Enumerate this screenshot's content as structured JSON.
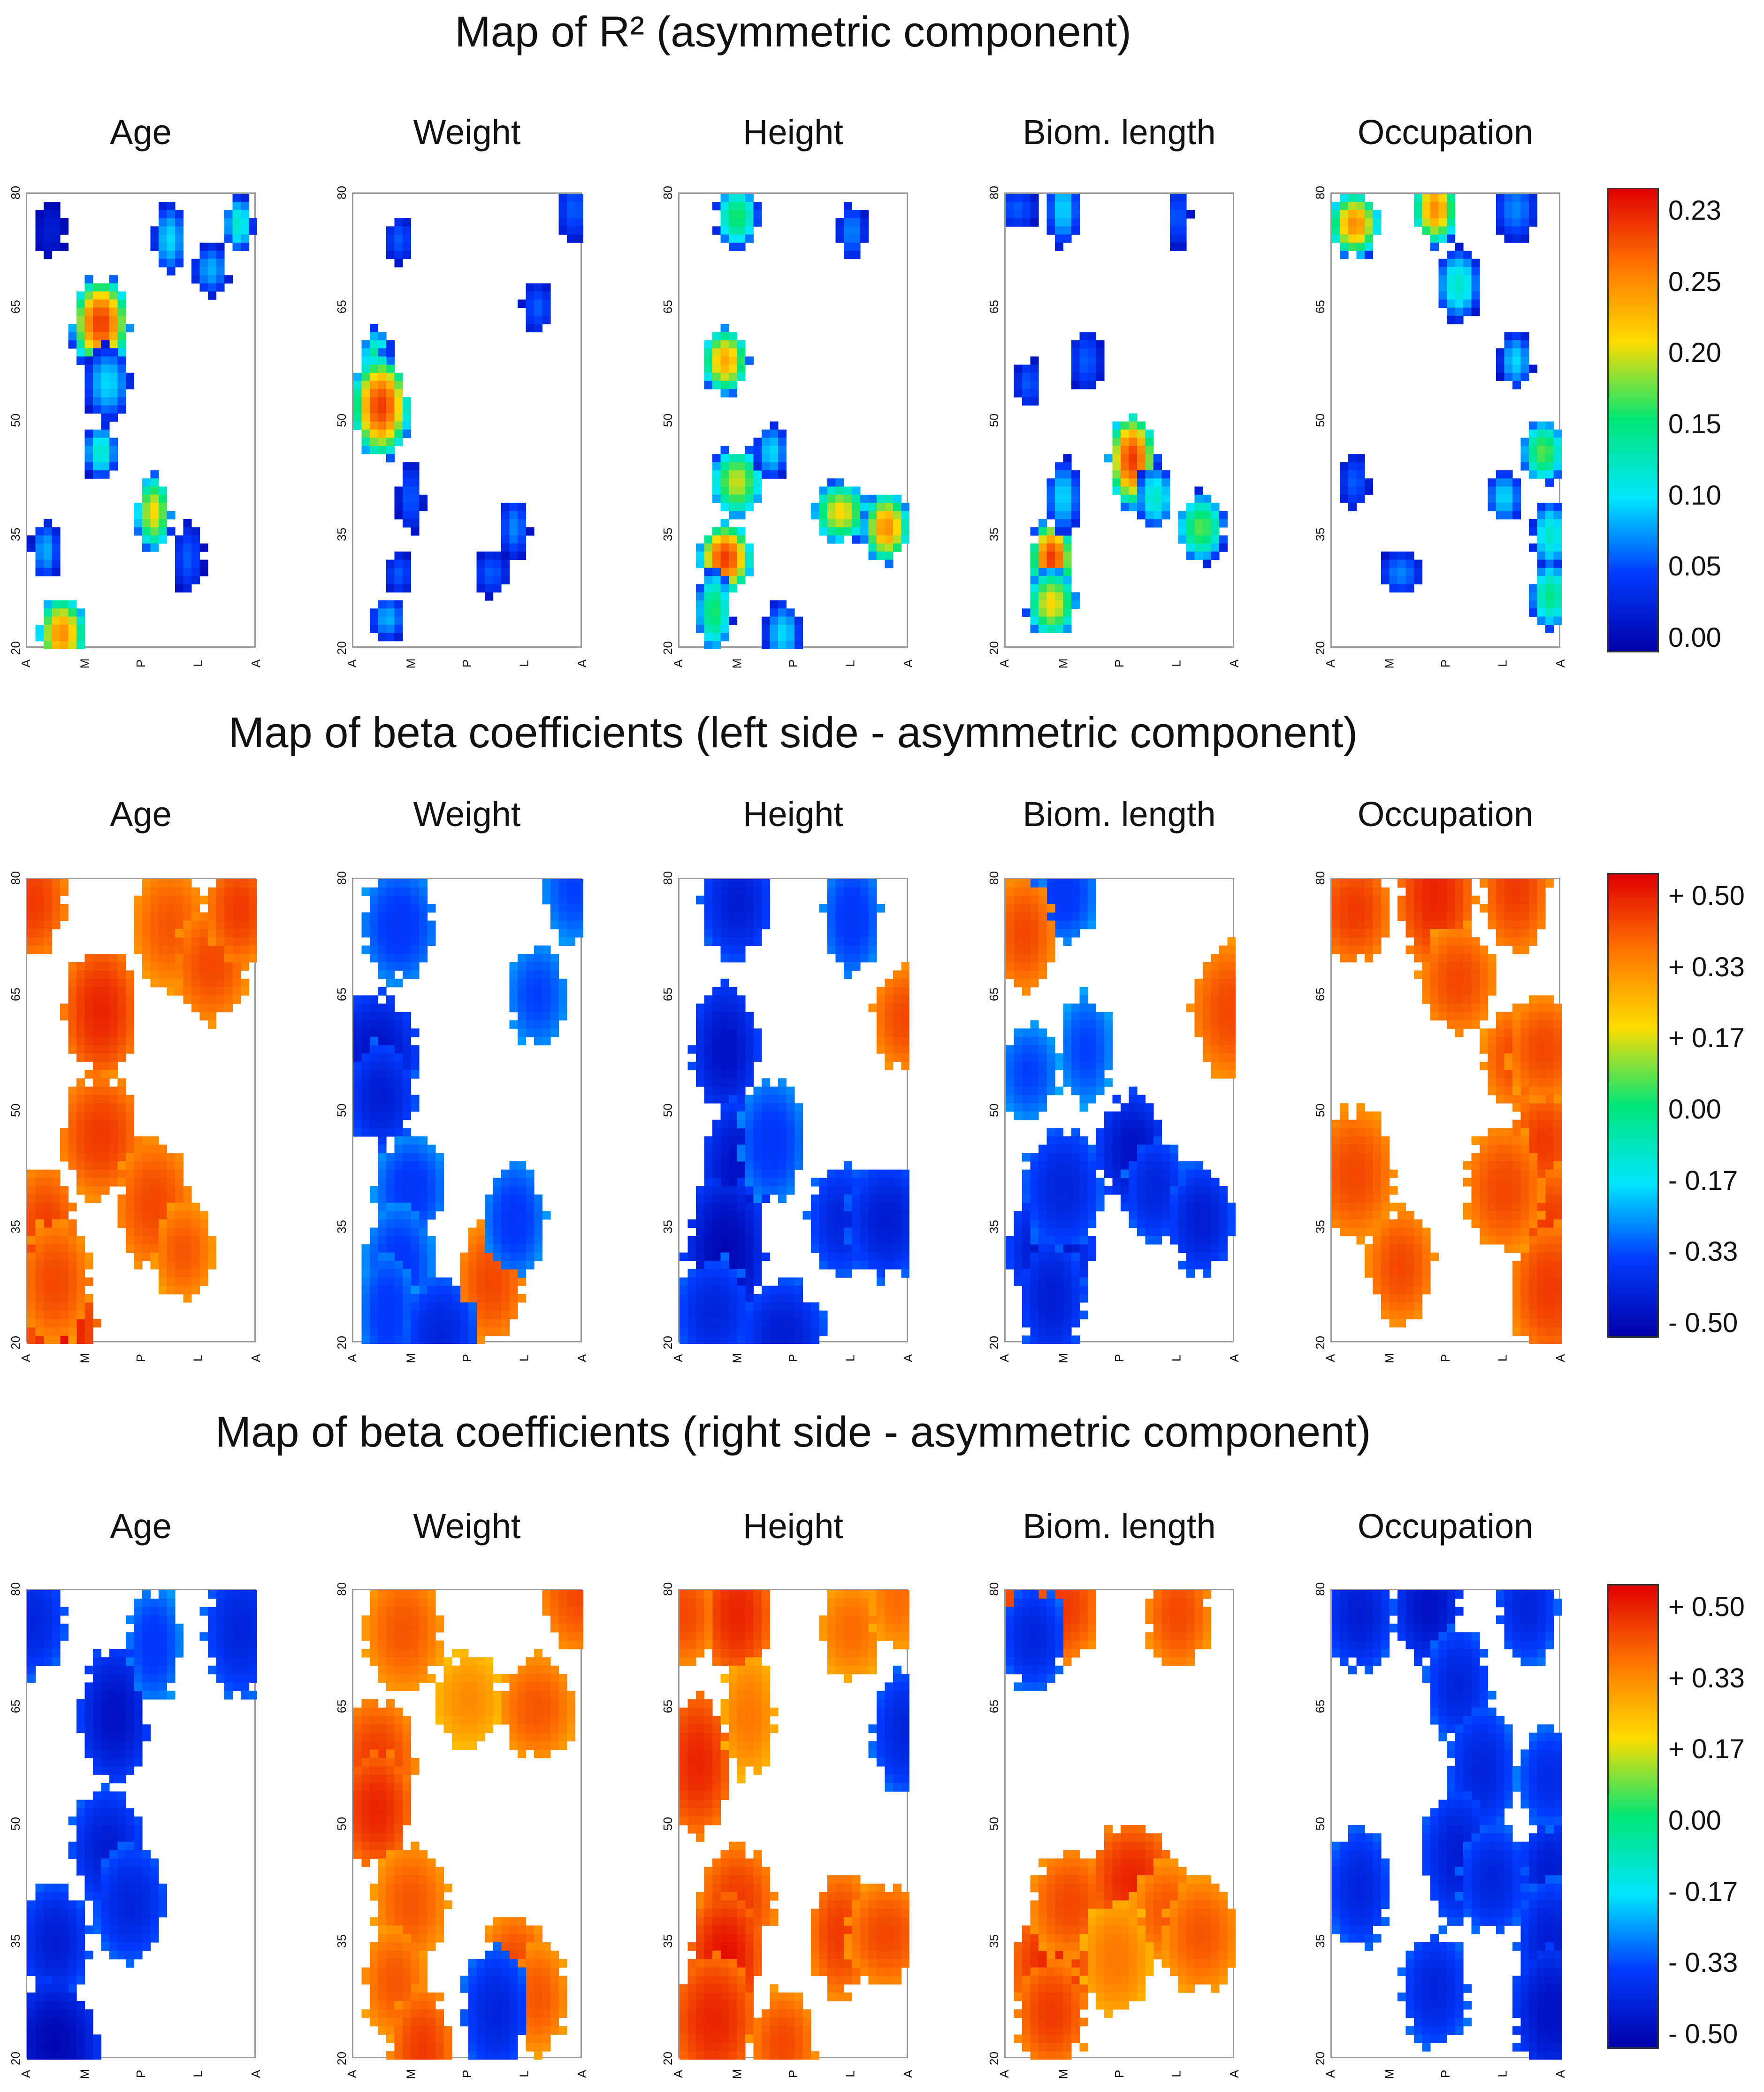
{
  "titles": {
    "r2": "Map of R² (asymmetric component)",
    "left": "Map of beta coefficients (left side - asymmetric component)",
    "right": "Map of beta coefficients (right side - asymmetric component)"
  },
  "panel_names": [
    "Age",
    "Weight",
    "Height",
    "Biom. length",
    "Occupation"
  ],
  "y_ticks": [
    "80",
    "65",
    "50",
    "35",
    "20"
  ],
  "x_ticks": [
    "A",
    "M",
    "P",
    "L",
    "A"
  ],
  "colorbars": {
    "r2": [
      "0.23",
      "0.25",
      "0.20",
      "0.15",
      "0.10",
      "0.05",
      "0.00"
    ],
    "beta": [
      "+ 0.50",
      "+ 0.33",
      "+ 0.17",
      "0.00",
      "- 0.17",
      "- 0.33",
      "- 0.50"
    ]
  },
  "colors": {
    "low": "#0000a8",
    "mid": "#00e676",
    "high": "#e00000",
    "border": "#9a9a9a"
  },
  "chart_data": [
    {
      "type": "heatmap",
      "title": "Map of R² (asymmetric component)",
      "xlabel": "",
      "ylabel": "",
      "x_ticks": [
        "A",
        "M",
        "P",
        "L",
        "A"
      ],
      "y_ticks": [
        80,
        65,
        50,
        35,
        20
      ],
      "ylim": [
        20,
        80
      ],
      "color_range": [
        0,
        0.25
      ],
      "panels": [
        {
          "name": "Age",
          "blobs": [
            [
              0.1,
              75,
              0.02
            ],
            [
              0.32,
              63,
              0.23
            ],
            [
              0.35,
              55,
              0.08
            ],
            [
              0.32,
              46,
              0.1
            ],
            [
              0.55,
              38,
              0.17
            ],
            [
              0.08,
              33,
              0.07
            ],
            [
              0.15,
              22,
              0.2
            ],
            [
              0.62,
              74,
              0.08
            ],
            [
              0.8,
              70,
              0.07
            ],
            [
              0.92,
              76,
              0.1
            ],
            [
              0.7,
              32,
              0.05
            ]
          ]
        },
        {
          "name": "Weight",
          "blobs": [
            [
              0.1,
              58,
              0.12
            ],
            [
              0.12,
              52,
              0.23
            ],
            [
              0.2,
              74,
              0.05
            ],
            [
              0.25,
              40,
              0.05
            ],
            [
              0.2,
              30,
              0.05
            ],
            [
              0.15,
              24,
              0.07
            ],
            [
              0.6,
              30,
              0.05
            ],
            [
              0.7,
              36,
              0.06
            ],
            [
              0.8,
              65,
              0.05
            ],
            [
              0.96,
              78,
              0.05
            ]
          ]
        },
        {
          "name": "Height",
          "blobs": [
            [
              0.25,
              77,
              0.13
            ],
            [
              0.2,
              58,
              0.19
            ],
            [
              0.25,
              42,
              0.16
            ],
            [
              0.2,
              32,
              0.23
            ],
            [
              0.15,
              25,
              0.13
            ],
            [
              0.45,
              22,
              0.08
            ],
            [
              0.7,
              38,
              0.17
            ],
            [
              0.9,
              36,
              0.2
            ],
            [
              0.75,
              75,
              0.06
            ],
            [
              0.4,
              46,
              0.08
            ]
          ]
        },
        {
          "name": "Biom. length",
          "blobs": [
            [
              0.2,
              32,
              0.23
            ],
            [
              0.2,
              26,
              0.17
            ],
            [
              0.25,
              40,
              0.08
            ],
            [
              0.55,
              45,
              0.23
            ],
            [
              0.65,
              40,
              0.1
            ],
            [
              0.85,
              36,
              0.14
            ],
            [
              0.25,
              78,
              0.08
            ],
            [
              0.05,
              78,
              0.05
            ],
            [
              0.35,
              58,
              0.05
            ],
            [
              0.1,
              55,
              0.05
            ],
            [
              0.75,
              77,
              0.05
            ]
          ]
        },
        {
          "name": "Occupation",
          "blobs": [
            [
              0.1,
              76,
              0.2
            ],
            [
              0.45,
              78,
              0.2
            ],
            [
              0.55,
              68,
              0.1
            ],
            [
              0.8,
              58,
              0.08
            ],
            [
              0.92,
              46,
              0.14
            ],
            [
              0.95,
              35,
              0.1
            ],
            [
              0.95,
              27,
              0.12
            ],
            [
              0.3,
              30,
              0.06
            ],
            [
              0.75,
              40,
              0.08
            ],
            [
              0.8,
              78,
              0.06
            ],
            [
              0.1,
              42,
              0.05
            ]
          ]
        }
      ]
    },
    {
      "type": "heatmap",
      "title": "Map of beta coefficients (left side - asymmetric component)",
      "xlabel": "",
      "ylabel": "",
      "x_ticks": [
        "A",
        "M",
        "P",
        "L",
        "A"
      ],
      "y_ticks": [
        80,
        65,
        50,
        35,
        20
      ],
      "ylim": [
        20,
        80
      ],
      "color_range": [
        -0.5,
        0.5
      ],
      "panels": [
        {
          "name": "Age",
          "blobs": [
            [
              0.32,
              63,
              0.45
            ],
            [
              0.32,
              47,
              0.42
            ],
            [
              0.55,
              38,
              0.4
            ],
            [
              0.08,
              34,
              0.42
            ],
            [
              0.15,
              22,
              0.48
            ],
            [
              0.62,
              74,
              0.38
            ],
            [
              0.8,
              69,
              0.4
            ],
            [
              0.92,
              76,
              0.42
            ],
            [
              0.02,
              77,
              0.42
            ],
            [
              0.12,
              28,
              0.4
            ],
            [
              0.68,
              32,
              0.38
            ]
          ]
        },
        {
          "name": "Weight",
          "blobs": [
            [
              0.1,
              57,
              -0.45
            ],
            [
              0.12,
              52,
              -0.42
            ],
            [
              0.2,
              74,
              -0.35
            ],
            [
              0.25,
              40,
              -0.35
            ],
            [
              0.2,
              30,
              -0.35
            ],
            [
              0.15,
              24,
              -0.35
            ],
            [
              0.6,
              28,
              0.4
            ],
            [
              0.7,
              36,
              -0.35
            ],
            [
              0.8,
              65,
              -0.33
            ],
            [
              0.96,
              79,
              -0.33
            ],
            [
              0.38,
              21,
              -0.4
            ]
          ]
        },
        {
          "name": "Height",
          "blobs": [
            [
              0.25,
              77,
              -0.42
            ],
            [
              0.2,
              58,
              -0.45
            ],
            [
              0.25,
              42,
              -0.45
            ],
            [
              0.2,
              32,
              -0.48
            ],
            [
              0.15,
              24,
              -0.4
            ],
            [
              0.45,
              21,
              -0.42
            ],
            [
              0.7,
              36,
              -0.4
            ],
            [
              0.9,
              36,
              -0.42
            ],
            [
              0.75,
              75,
              -0.35
            ],
            [
              0.4,
              46,
              -0.35
            ],
            [
              0.98,
              62,
              0.4
            ]
          ]
        },
        {
          "name": "Biom. length",
          "blobs": [
            [
              0.2,
              32,
              -0.45
            ],
            [
              0.2,
              26,
              -0.42
            ],
            [
              0.25,
              40,
              -0.4
            ],
            [
              0.55,
              45,
              -0.45
            ],
            [
              0.65,
              40,
              -0.4
            ],
            [
              0.85,
              36,
              -0.42
            ],
            [
              0.25,
              78,
              -0.35
            ],
            [
              0.05,
              78,
              -0.33
            ],
            [
              0.35,
              58,
              -0.33
            ],
            [
              0.1,
              55,
              -0.33
            ],
            [
              0.98,
              63,
              0.4
            ],
            [
              0.08,
              73,
              0.4
            ]
          ]
        },
        {
          "name": "Occupation",
          "blobs": [
            [
              0.1,
              76,
              0.42
            ],
            [
              0.45,
              78,
              0.45
            ],
            [
              0.55,
              67,
              0.4
            ],
            [
              0.8,
              57,
              0.4
            ],
            [
              0.92,
              46,
              0.42
            ],
            [
              0.95,
              35,
              0.42
            ],
            [
              0.95,
              27,
              0.42
            ],
            [
              0.3,
              30,
              0.4
            ],
            [
              0.75,
              40,
              0.4
            ],
            [
              0.8,
              79,
              0.42
            ],
            [
              0.1,
              42,
              0.4
            ],
            [
              0.92,
              58,
              0.4
            ]
          ]
        }
      ]
    },
    {
      "type": "heatmap",
      "title": "Map of beta coefficients (right side - asymmetric component)",
      "xlabel": "",
      "ylabel": "",
      "x_ticks": [
        "A",
        "M",
        "P",
        "L",
        "A"
      ],
      "y_ticks": [
        80,
        65,
        50,
        35,
        20
      ],
      "ylim": [
        20,
        80
      ],
      "color_range": [
        -0.5,
        0.5
      ],
      "panels": [
        {
          "name": "Age",
          "blobs": [
            [
              0.38,
              64,
              -0.45
            ],
            [
              0.35,
              47,
              -0.42
            ],
            [
              0.45,
              40,
              -0.4
            ],
            [
              0.12,
              35,
              -0.42
            ],
            [
              0.12,
              22,
              -0.48
            ],
            [
              0.55,
              73,
              -0.35
            ],
            [
              0.93,
              75,
              -0.4
            ],
            [
              0.02,
              76,
              -0.4
            ]
          ]
        },
        {
          "name": "Weight",
          "blobs": [
            [
              0.1,
              58,
              0.42
            ],
            [
              0.1,
              52,
              0.45
            ],
            [
              0.22,
              75,
              0.38
            ],
            [
              0.25,
              40,
              0.38
            ],
            [
              0.18,
              30,
              0.38
            ],
            [
              0.3,
              21,
              0.42
            ],
            [
              0.7,
              32,
              0.4
            ],
            [
              0.8,
              28,
              0.38
            ],
            [
              0.8,
              65,
              0.38
            ],
            [
              0.62,
              26,
              -0.4
            ],
            [
              0.5,
              66,
              0.3
            ],
            [
              0.98,
              80,
              0.4
            ]
          ]
        },
        {
          "name": "Height",
          "blobs": [
            [
              0.25,
              77,
              0.45
            ],
            [
              0.08,
              58,
              0.45
            ],
            [
              0.25,
              40,
              0.42
            ],
            [
              0.2,
              33,
              0.48
            ],
            [
              0.15,
              25,
              0.45
            ],
            [
              0.45,
              22,
              0.4
            ],
            [
              0.7,
              36,
              0.42
            ],
            [
              0.9,
              36,
              0.4
            ],
            [
              0.75,
              75,
              0.35
            ],
            [
              0.3,
              64,
              0.33
            ],
            [
              0.02,
              77,
              0.4
            ],
            [
              0.98,
              62,
              -0.4
            ],
            [
              0.95,
              79,
              0.35
            ]
          ]
        },
        {
          "name": "Biom. length",
          "blobs": [
            [
              0.2,
              32,
              0.45
            ],
            [
              0.2,
              26,
              0.42
            ],
            [
              0.28,
              40,
              0.4
            ],
            [
              0.55,
              43,
              0.45
            ],
            [
              0.7,
              39,
              0.38
            ],
            [
              0.85,
              36,
              0.38
            ],
            [
              0.25,
              78,
              0.42
            ],
            [
              0.03,
              78,
              0.4
            ],
            [
              0.75,
              77,
              0.4
            ],
            [
              0.12,
              74,
              -0.4
            ],
            [
              0.48,
              33,
              0.33
            ]
          ]
        },
        {
          "name": "Occupation",
          "blobs": [
            [
              0.12,
              77,
              -0.42
            ],
            [
              0.42,
              78,
              -0.45
            ],
            [
              0.55,
              68,
              -0.4
            ],
            [
              0.65,
              57,
              -0.4
            ],
            [
              0.55,
              46,
              -0.42
            ],
            [
              0.95,
              44,
              -0.42
            ],
            [
              0.95,
              35,
              -0.42
            ],
            [
              0.95,
              26,
              -0.45
            ],
            [
              0.45,
              29,
              -0.4
            ],
            [
              0.85,
              78,
              -0.4
            ],
            [
              0.12,
              42,
              -0.4
            ],
            [
              0.7,
              43,
              -0.4
            ],
            [
              0.95,
              56,
              -0.38
            ]
          ]
        }
      ]
    }
  ]
}
